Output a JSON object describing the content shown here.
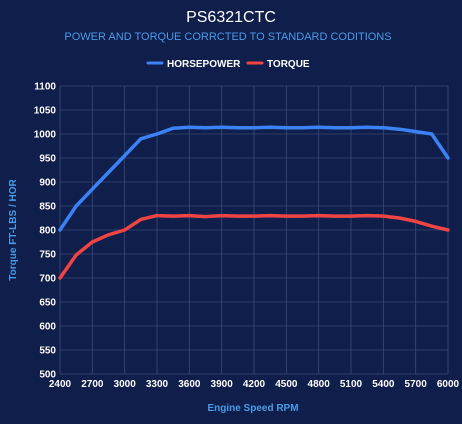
{
  "chart_data": {
    "type": "line",
    "title": "PS6321CTC",
    "subtitle": "POWER AND TORQUE CORRCTED TO STANDARD CODITIONS",
    "xlabel": "Engine Speed RPM",
    "ylabel": "Torque FT-LBS / HOR",
    "x": [
      2400,
      2550,
      2700,
      2850,
      3000,
      3150,
      3300,
      3450,
      3600,
      3750,
      3900,
      4050,
      4200,
      4350,
      4500,
      4650,
      4800,
      4950,
      5100,
      5250,
      5400,
      5550,
      5700,
      5850,
      6000
    ],
    "x_ticks": [
      "2400",
      "2700",
      "3000",
      "3300",
      "3600",
      "3900",
      "4200",
      "4500",
      "4800",
      "5100",
      "5400",
      "5700",
      "6000"
    ],
    "y_ticks": [
      "500",
      "550",
      "600",
      "650",
      "700",
      "750",
      "800",
      "850",
      "900",
      "950",
      "1000",
      "1050",
      "1100"
    ],
    "xlim": [
      2400,
      6000
    ],
    "ylim": [
      500,
      1100
    ],
    "grid": true,
    "legend_position": "top",
    "series": [
      {
        "name": "HORSEPOWER",
        "color": "#3b82f6",
        "values": [
          800,
          850,
          885,
          920,
          955,
          990,
          1000,
          1012,
          1014,
          1013,
          1014,
          1013,
          1013,
          1014,
          1013,
          1013,
          1014,
          1013,
          1013,
          1014,
          1013,
          1010,
          1005,
          1000,
          950
        ]
      },
      {
        "name": "TORQUE",
        "color": "#ef4444",
        "values": [
          700,
          748,
          775,
          790,
          800,
          822,
          830,
          829,
          830,
          828,
          830,
          829,
          829,
          830,
          829,
          829,
          830,
          829,
          829,
          830,
          829,
          825,
          818,
          808,
          800
        ]
      }
    ]
  }
}
